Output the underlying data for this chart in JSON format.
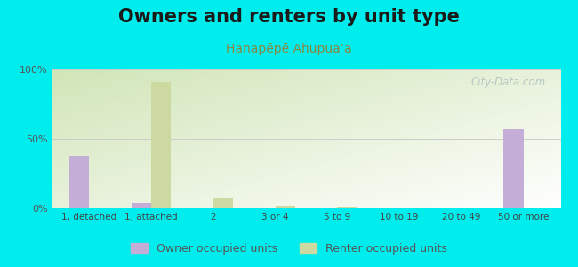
{
  "title": "Owners and renters by unit type",
  "subtitle": "Hanapēpē Ahupuaʻa",
  "categories": [
    "1, detached",
    "1, attached",
    "2",
    "3 or 4",
    "5 to 9",
    "10 to 19",
    "20 to 49",
    "50 or more"
  ],
  "owner_values": [
    38,
    4,
    0,
    0,
    0,
    0,
    0,
    57
  ],
  "renter_values": [
    0,
    91,
    8,
    2,
    0.8,
    0,
    0,
    0
  ],
  "owner_color": "#c4aed8",
  "renter_color": "#ccd9a0",
  "background_color": "#00eded",
  "plot_bg_color_topleft": "#d8edc8",
  "plot_bg_color_bottomright": "#f8fcf4",
  "ylim": [
    0,
    100
  ],
  "bar_width": 0.32,
  "title_fontsize": 15,
  "subtitle_fontsize": 10,
  "legend_labels": [
    "Owner occupied units",
    "Renter occupied units"
  ],
  "watermark": "City-Data.com"
}
